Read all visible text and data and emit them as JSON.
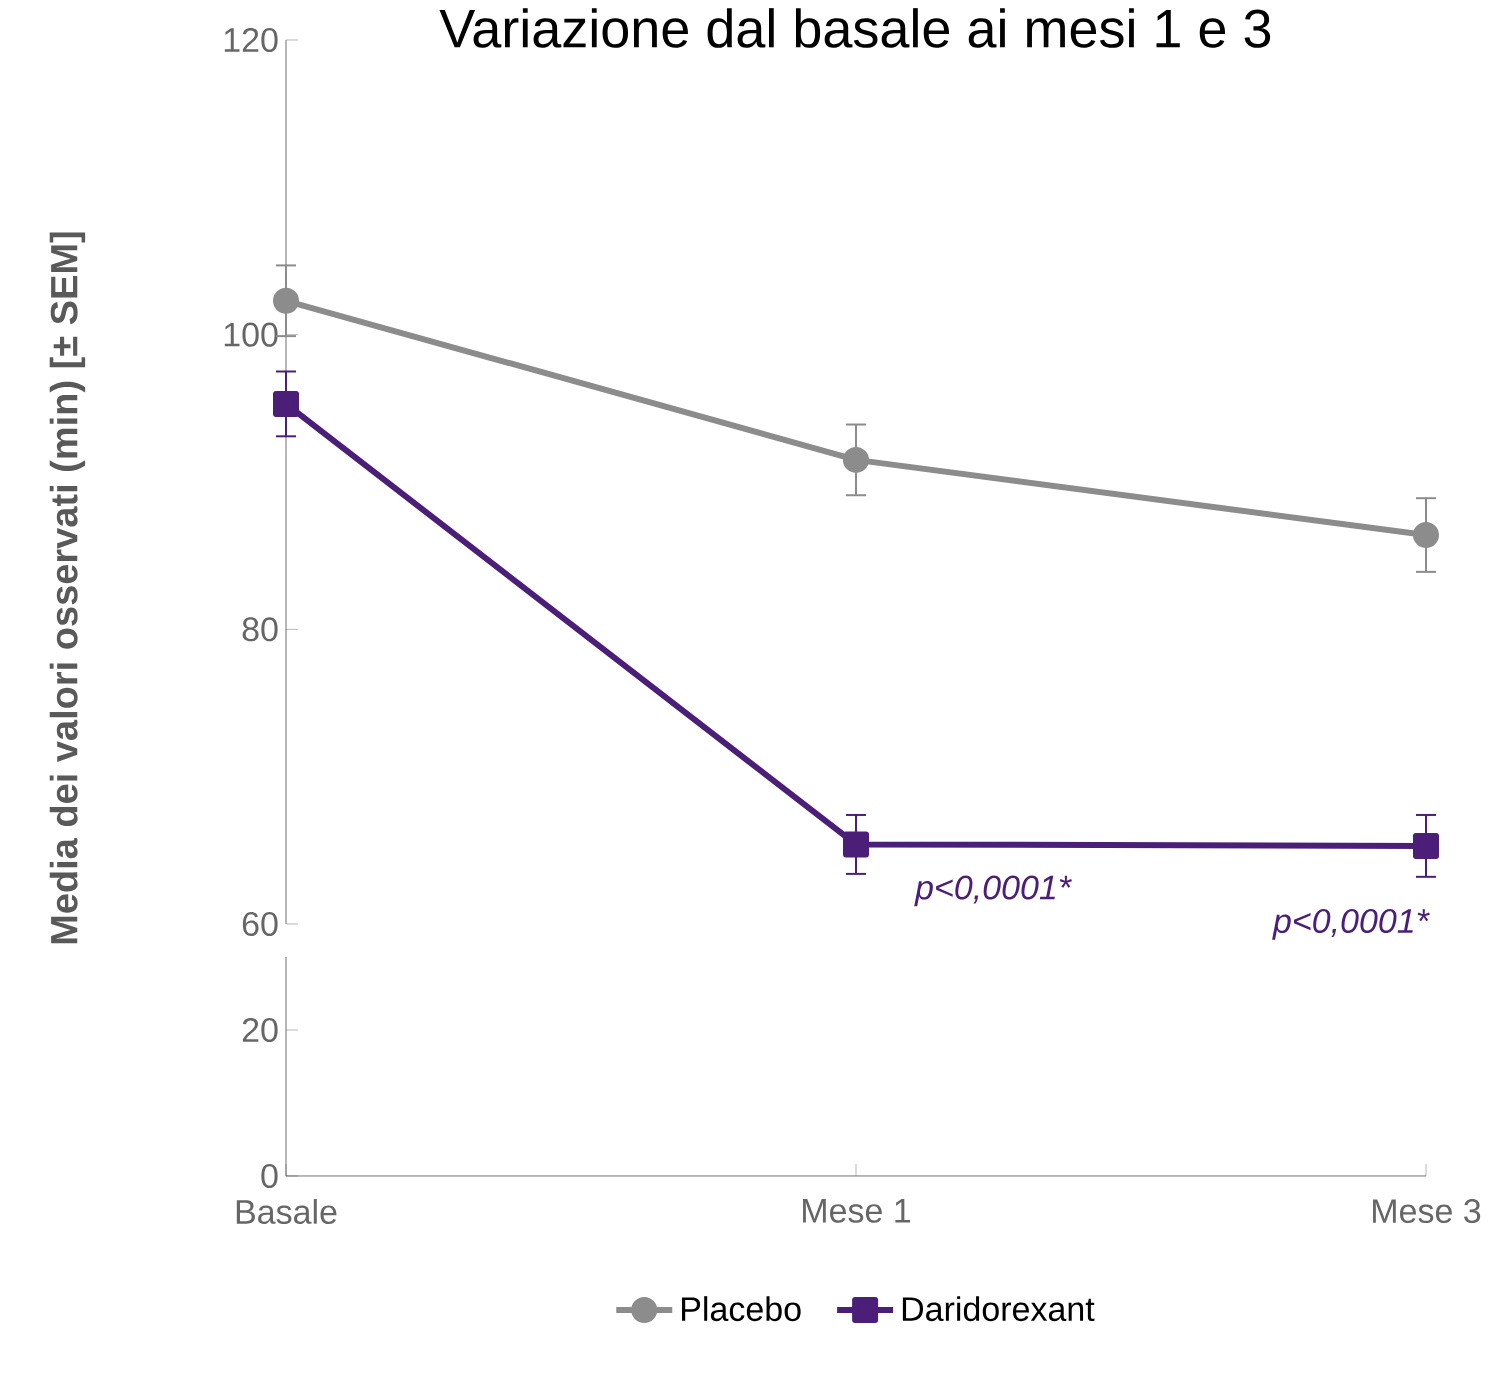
{
  "chart_data": [
    {
      "type": "line",
      "title": "Variazione dal basale ai mesi 1 e 3",
      "ylabel": "Media dei valori osservati (min) [± SEM]",
      "categories": [
        "Basale",
        "Mese 1",
        "Mese 3"
      ],
      "series": [
        {
          "name": "Placebo",
          "color": "#8c8c8c",
          "marker": "circle",
          "values": [
            102.3,
            91.5,
            86.4
          ],
          "errors": [
            2.4,
            2.4,
            2.5
          ]
        },
        {
          "name": "Daridorexant",
          "color": "#4b1e78",
          "marker": "square",
          "values": [
            95.3,
            65.4,
            65.3
          ],
          "errors": [
            2.2,
            2.0,
            2.1
          ]
        }
      ],
      "ylim": [
        60,
        120
      ],
      "yticks": [
        60,
        80,
        100,
        120
      ],
      "tick_labels": "y",
      "legend": "bottom",
      "annotations": [
        {
          "text": "p<0,0001*",
          "x": "Mese 1",
          "y": 65.4
        },
        {
          "text": "p<0,0001*",
          "x": "Mese 3",
          "y": 65.3
        }
      ]
    },
    {
      "type": "line",
      "categories": [
        "Basale",
        "Mese 1",
        "Mese 3"
      ],
      "series": [
        {
          "values": [
            null,
            null,
            null
          ]
        }
      ],
      "ylim": [
        0,
        30
      ],
      "yticks": [
        0,
        20
      ]
    }
  ]
}
